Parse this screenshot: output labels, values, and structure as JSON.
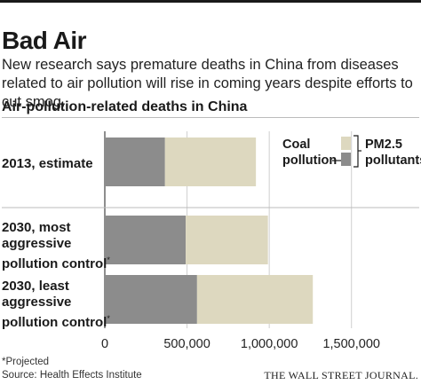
{
  "headline": "Bad Air",
  "deck": "New research says premature deaths in China from diseases related to air pollution will rise in coming years despite efforts to cut smog.",
  "footnote": "*Projected",
  "source": "Source: Health Effects Institute",
  "credit": "THE WALL STREET JOURNAL.",
  "colors": {
    "coal": "#8c8c8c",
    "pm25": "#ddd8bf",
    "grid": "#cfcfcf",
    "axis": "#444444"
  },
  "chart_data": {
    "type": "bar",
    "orientation": "horizontal",
    "stacked": true,
    "title": "Air-pollution-related deaths in China",
    "categories": [
      [
        "2013, estimate"
      ],
      [
        "2030, most",
        "aggressive",
        "pollution control*"
      ],
      [
        "2030, least",
        "aggressive",
        "pollution control*"
      ]
    ],
    "series": [
      {
        "key": "coal",
        "label": [
          "Coal",
          "pollution"
        ],
        "values": [
          366000,
          492000,
          561000
        ]
      },
      {
        "key": "pm25",
        "label": [
          "PM2.5",
          "pollutants"
        ],
        "values": [
          553000,
          500000,
          704000
        ]
      }
    ],
    "xlim": [
      0,
      1750000
    ],
    "xticks": [
      0,
      500000,
      1000000,
      1500000
    ],
    "xtick_labels": [
      "0",
      "500,000",
      "1,000,000",
      "1,500,000"
    ],
    "legend_position": "top-right"
  }
}
